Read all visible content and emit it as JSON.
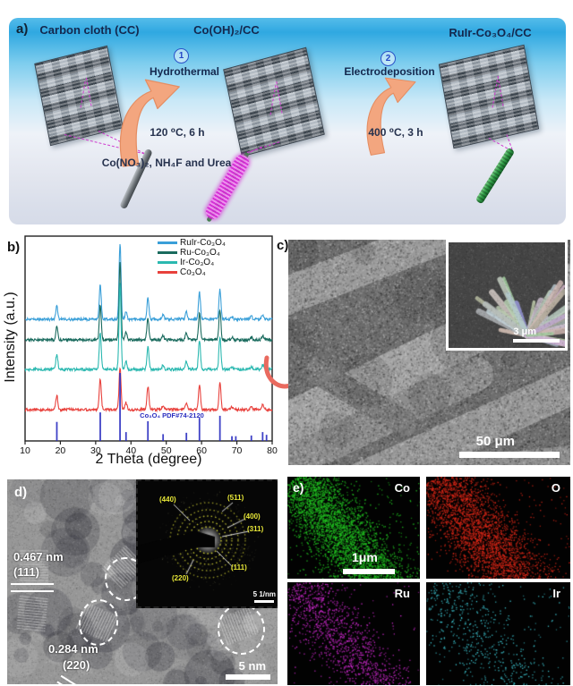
{
  "panel_a": {
    "label": "a)",
    "stage1_title": "Carbon cloth (CC)",
    "stage2_title": "Co(OH)₂/CC",
    "stage3_title": "RuIr-Co₃O₄/CC",
    "step1_number": "1",
    "step1_name": "Hydrothermal",
    "step1_conditions": "120 ⁰C, 6 h",
    "step1_reagents": "Co(NO₃)₂, NH₄F and Urea",
    "step2_number": "2",
    "step2_name": "Electrodeposition",
    "step2_conditions": "400 ⁰C, 3 h"
  },
  "panel_b": {
    "label": "b)"
  },
  "chart_data": {
    "type": "line",
    "title": "",
    "xlabel": "2 Theta (degree)",
    "ylabel": "Intensity (a.u.)",
    "xlim": [
      10,
      80
    ],
    "xticks": [
      10,
      20,
      30,
      40,
      50,
      60,
      70,
      80
    ],
    "grid": false,
    "legend_position": "top-right",
    "peaks_2theta": [
      19.0,
      31.3,
      36.9,
      38.6,
      44.8,
      49.1,
      55.7,
      59.4,
      65.2,
      68.6,
      74.1,
      77.3
    ],
    "series": [
      {
        "name": "RuIr-Co₃O₄",
        "color": "#3a9fd8",
        "peak_heights": [
          15,
          38,
          84,
          8,
          24,
          5,
          8,
          30,
          34,
          3,
          3,
          5
        ]
      },
      {
        "name": "Ru-Co₃O₄",
        "color": "#1a6b5e",
        "peak_heights": [
          15,
          38,
          86,
          8,
          24,
          5,
          8,
          30,
          34,
          3,
          3,
          5
        ]
      },
      {
        "name": "Ir-Co₃O₄",
        "color": "#2bb8b0",
        "peak_heights": [
          17,
          42,
          96,
          9,
          26,
          5,
          9,
          33,
          37,
          3,
          3,
          5
        ]
      },
      {
        "name": "Co₃O₄",
        "color": "#e8413c",
        "peak_heights": [
          16,
          35,
          47,
          8,
          26,
          5,
          8,
          28,
          31,
          3,
          4,
          5
        ]
      }
    ],
    "reference": {
      "label": "Co₃O₄ PDF#74-2120",
      "color": "#2a2ec0",
      "positions": [
        19.0,
        31.3,
        36.9,
        38.6,
        44.8,
        49.1,
        55.7,
        59.4,
        65.2,
        68.6,
        69.7,
        74.1,
        77.3,
        78.4
      ],
      "rel_intensities": [
        28,
        42,
        100,
        13,
        29,
        10,
        12,
        34,
        37,
        7,
        7,
        8,
        13,
        9
      ]
    }
  },
  "panel_c": {
    "label": "c)",
    "scalebar": "50 μm",
    "inset": {
      "scalebar": "3 μm"
    }
  },
  "panel_d": {
    "label": "d)",
    "lattice1_d": "0.467 nm",
    "lattice1_plane": "(111)",
    "lattice2_d": "0.284 nm",
    "lattice2_plane": "(220)",
    "scalebar": "5 nm",
    "saed": {
      "ring_labels": [
        "(440)",
        "(511)",
        "(400)",
        "(311)",
        "(111)",
        "(220)"
      ],
      "scalebar": "5 1/nm"
    }
  },
  "panel_e": {
    "label": "e)",
    "scalebar": "1μm",
    "maps": [
      {
        "element": "Co",
        "color": "#22c522"
      },
      {
        "element": "O",
        "color": "#e02818"
      },
      {
        "element": "Ru",
        "color": "#d22ad2"
      },
      {
        "element": "Ir",
        "color": "#40ccd8"
      }
    ]
  }
}
